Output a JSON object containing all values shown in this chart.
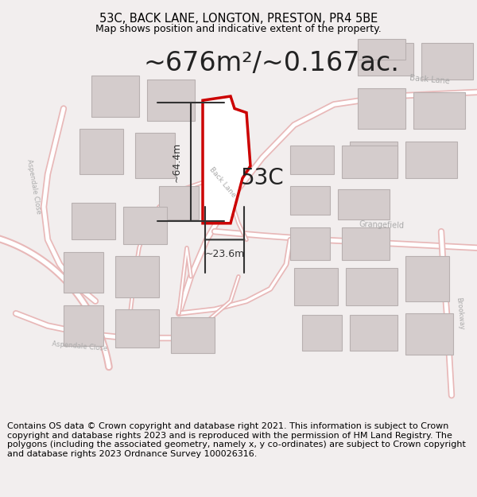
{
  "title": "53C, BACK LANE, LONGTON, PRESTON, PR4 5BE",
  "subtitle": "Map shows position and indicative extent of the property.",
  "area_text": "~676m²/~0.167ac.",
  "label_53c": "53C",
  "dim_width": "~23.6m",
  "dim_height": "~64.4m",
  "footer": "Contains OS data © Crown copyright and database right 2021. This information is subject to Crown copyright and database rights 2023 and is reproduced with the permission of HM Land Registry. The polygons (including the associated geometry, namely x, y co-ordinates) are subject to Crown copyright and database rights 2023 Ordnance Survey 100026316.",
  "bg_color": "#f2eeee",
  "map_bg": "#ffffff",
  "road_color": "#e8b8b8",
  "road_color_dark": "#cc0000",
  "building_fill": "#d4cccc",
  "building_stroke": "#b8b0b0",
  "plot_fill": "#ffffff",
  "plot_stroke": "#cc0000",
  "dim_color": "#333333",
  "text_color": "#222222",
  "road_label_color": "#aaaaaa",
  "title_fontsize": 10.5,
  "subtitle_fontsize": 9,
  "area_fontsize": 24,
  "label_fontsize": 20,
  "footer_fontsize": 8
}
